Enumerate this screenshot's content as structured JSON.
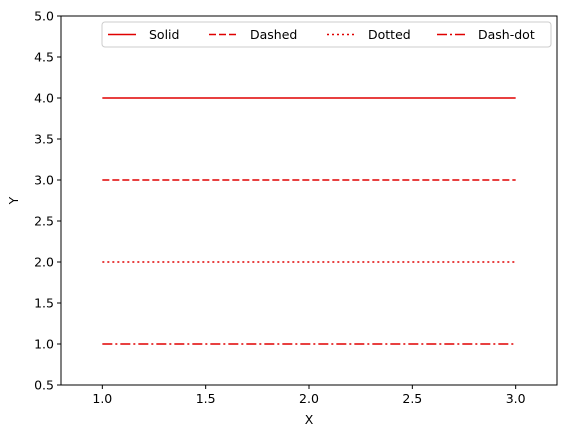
{
  "chart_data": {
    "type": "line",
    "title": "",
    "xlabel": "X",
    "ylabel": "Y",
    "xlim": [
      0.8,
      3.2
    ],
    "ylim": [
      0.5,
      5.0
    ],
    "xticks": [
      "1.0",
      "1.5",
      "2.0",
      "2.5",
      "3.0"
    ],
    "yticks": [
      "0.5",
      "1.0",
      "1.5",
      "2.0",
      "2.5",
      "3.0",
      "3.5",
      "4.0",
      "4.5",
      "5.0"
    ],
    "grid": false,
    "legend_position": "top, horizontal",
    "line_color": "#e00000",
    "series": [
      {
        "name": "Solid",
        "style": "solid",
        "x": [
          1.0,
          3.0
        ],
        "y": [
          4.0,
          4.0
        ]
      },
      {
        "name": "Dashed",
        "style": "dashed",
        "x": [
          1.0,
          3.0
        ],
        "y": [
          3.0,
          3.0
        ]
      },
      {
        "name": "Dotted",
        "style": "dotted",
        "x": [
          1.0,
          3.0
        ],
        "y": [
          2.0,
          2.0
        ]
      },
      {
        "name": "Dash-dot",
        "style": "dashdot",
        "x": [
          1.0,
          3.0
        ],
        "y": [
          1.0,
          1.0
        ]
      }
    ]
  }
}
